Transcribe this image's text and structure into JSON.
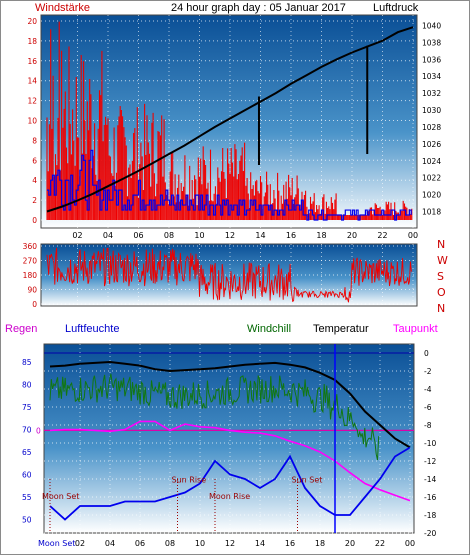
{
  "header": {
    "left_label": "Windstärke",
    "title": "24 hour graph day : 05 Januar 2017",
    "right_label": "Luftdruck"
  },
  "chart_data": [
    {
      "type": "line",
      "name": "wind-pressure",
      "y_left_ticks": [
        0,
        2,
        4,
        6,
        8,
        10,
        12,
        14,
        16,
        18,
        20
      ],
      "y_right_ticks": [
        1018,
        1020,
        1022,
        1024,
        1026,
        1028,
        1030,
        1032,
        1034,
        1036,
        1038,
        1040
      ],
      "x_ticks": [
        "02",
        "04",
        "06",
        "08",
        "10",
        "12",
        "14",
        "16",
        "18",
        "20",
        "22",
        "00"
      ],
      "series": [
        {
          "color": "#dd0000",
          "values_hint": "wind gust (red)"
        },
        {
          "color": "#0000dd",
          "values_hint": "wind average (blue)"
        },
        {
          "color": "#000000"
        }
      ],
      "pressure": [
        1018.0,
        1018.6,
        1019.3,
        1020.1,
        1021.0,
        1021.9,
        1022.8,
        1023.8,
        1024.8,
        1025.8,
        1026.9,
        1028.0,
        1029.0,
        1030.0,
        1031.0,
        1032.0,
        1033.1,
        1034.1,
        1035.1,
        1036.0,
        1036.8,
        1037.5,
        1038.2,
        1039.2,
        1039.8
      ],
      "ylim_left": [
        0,
        20
      ],
      "ylim_right": [
        1017,
        1041
      ]
    },
    {
      "type": "scatter",
      "name": "wind-direction",
      "y_left_ticks": [
        0,
        90,
        180,
        270,
        360
      ],
      "compass": [
        "N",
        "W",
        "S",
        "O",
        "N"
      ],
      "x_ticks": [
        "02",
        "04",
        "06",
        "08",
        "10",
        "12",
        "14",
        "16",
        "18",
        "20",
        "22",
        "00"
      ],
      "ylim": [
        0,
        360
      ]
    },
    {
      "type": "line",
      "name": "temperature-humidity",
      "legend": [
        "Regen",
        "Luftfeuchte",
        "Windchill",
        "Temperatur",
        "Taupunkt"
      ],
      "legend_colors": [
        "#cc00cc",
        "#0000cc",
        "#006600",
        "#000000",
        "#ff00ff"
      ],
      "y_left_ticks": [
        50,
        55,
        60,
        65,
        70,
        75,
        80,
        85
      ],
      "y_right_ticks": [
        0,
        -2,
        -4,
        -6,
        -8,
        -10,
        -12,
        -14,
        -16,
        -18,
        -20
      ],
      "rain_tick": "0",
      "x_ticks": [
        "02",
        "04",
        "06",
        "08",
        "10",
        "12",
        "14",
        "16",
        "18",
        "20",
        "22",
        "00"
      ],
      "x_first_label": "Moon Set",
      "annotations": [
        {
          "text": "Moon Set",
          "hour": 0.0
        },
        {
          "text": "Sun Rise",
          "hour": 8.5
        },
        {
          "text": "Moon Rise",
          "hour": 11.0
        },
        {
          "text": "Sun Set",
          "hour": 16.5
        }
      ],
      "ylim_left": [
        47,
        89
      ],
      "ylim_right": [
        -20,
        1
      ],
      "temperature": [
        -1.5,
        -1.4,
        -1.2,
        -1.1,
        -1.0,
        -1.2,
        -1.4,
        -1.8,
        -2.0,
        -1.9,
        -1.8,
        -1.7,
        -1.5,
        -1.3,
        -1.2,
        -1.1,
        -1.3,
        -1.6,
        -2.2,
        -3.0,
        -4.5,
        -6.5,
        -8.0,
        -9.5,
        -10.5
      ],
      "humidity": [
        53,
        50,
        53,
        53,
        53,
        54,
        54,
        54,
        55,
        56,
        58,
        63,
        60,
        59,
        57,
        59,
        64,
        57,
        53,
        51,
        51,
        55,
        59,
        64,
        66
      ],
      "dewpoint": [
        -8.6,
        -8.5,
        -8.5,
        -8.6,
        -8.7,
        -8.5,
        -7.6,
        -7.6,
        -8.6,
        -7.9,
        -8.2,
        -8.3,
        -8.6,
        -8.8,
        -8.9,
        -9.2,
        -9.8,
        -10.3,
        -11.0,
        -12.0,
        -13.3,
        -14.5,
        -15.2,
        -15.8,
        -16.4
      ]
    }
  ]
}
